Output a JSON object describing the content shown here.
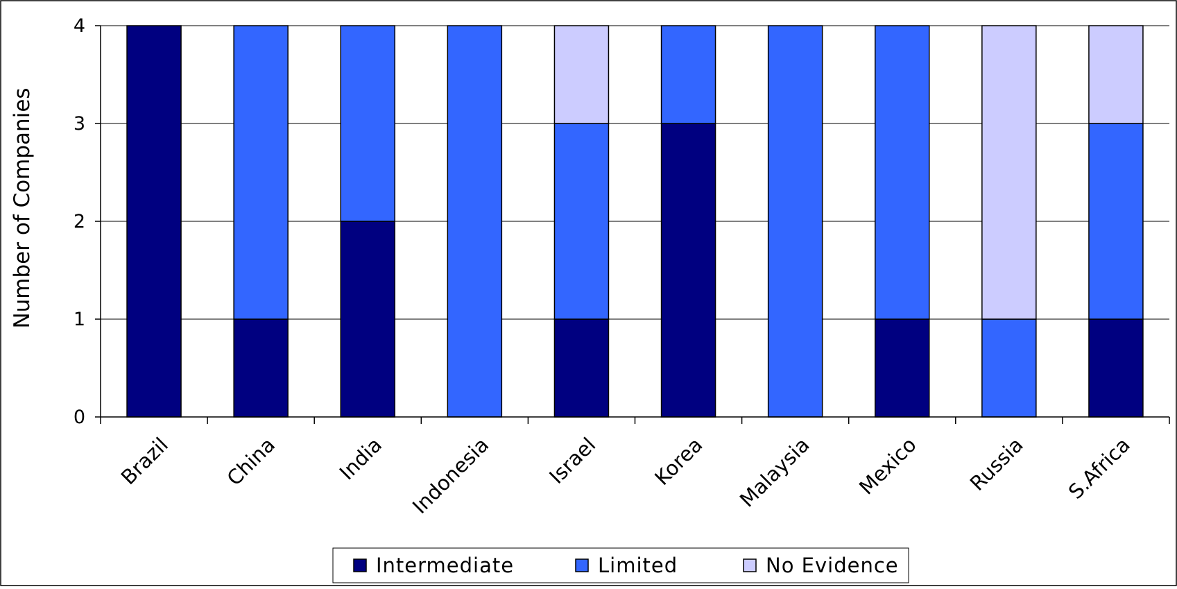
{
  "chart_data": {
    "type": "bar",
    "stacked": true,
    "categories": [
      "Brazil",
      "China",
      "India",
      "Indonesia",
      "Israel",
      "Korea",
      "Malaysia",
      "Mexico",
      "Russia",
      "S.Africa"
    ],
    "series": [
      {
        "name": "Intermediate",
        "values": [
          4,
          1,
          2,
          0,
          1,
          3,
          0,
          1,
          0,
          1
        ],
        "color": "#000080"
      },
      {
        "name": "Limited",
        "values": [
          0,
          3,
          2,
          4,
          2,
          1,
          4,
          3,
          1,
          2
        ],
        "color": "#3366FF"
      },
      {
        "name": "No Evidence",
        "values": [
          0,
          0,
          0,
          0,
          1,
          0,
          0,
          0,
          3,
          1
        ],
        "color": "#CCCCFF"
      }
    ],
    "title": "",
    "xlabel": "",
    "ylabel": "Number of Companies",
    "ylim": [
      0,
      4
    ],
    "yticks": [
      0,
      1,
      2,
      3,
      4
    ],
    "grid": "horizontal",
    "legend": "bottom"
  }
}
